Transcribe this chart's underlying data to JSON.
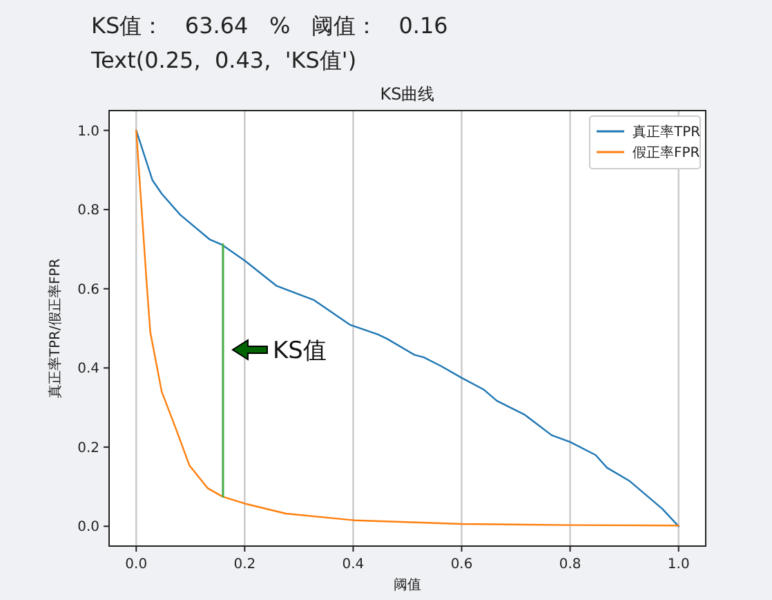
{
  "chart_data": {
    "type": "line",
    "title": "KS曲线",
    "xlabel": "阈值",
    "ylabel": "真正率TPR/假正率FPR",
    "annotations": [
      "KS值：   63.64   %   阈值：   0.16",
      "Text(0.25,  0.43,  'KS值')",
      "KS值"
    ],
    "xlim": [
      -0.05,
      1.05
    ],
    "ylim": [
      -0.05,
      1.05
    ],
    "xticks": [
      {
        "value": 0,
        "label": "0.0"
      },
      {
        "value": 0.2,
        "label": "0.2"
      },
      {
        "value": 0.4,
        "label": "0.4"
      },
      {
        "value": 0.6,
        "label": "0.6"
      },
      {
        "value": 0.8,
        "label": "0.8"
      },
      {
        "value": 1,
        "label": "1.0"
      }
    ],
    "yticks": [
      {
        "value": 0,
        "label": "0.0"
      },
      {
        "value": 0.2,
        "label": "0.2"
      },
      {
        "value": 0.4,
        "label": "0.4"
      },
      {
        "value": 0.6,
        "label": "0.6"
      },
      {
        "value": 0.8,
        "label": "0.8"
      },
      {
        "value": 1,
        "label": "1.0"
      }
    ],
    "grid": "x",
    "legend": "top right",
    "series": [
      {
        "name": "真正率TPR",
        "color": "#1f77b4",
        "x": [
          0,
          0.03,
          0.047,
          0.081,
          0.136,
          0.157,
          0.2,
          0.259,
          0.327,
          0.394,
          0.445,
          0.462,
          0.513,
          0.53,
          0.563,
          0.6,
          0.64,
          0.665,
          0.716,
          0.766,
          0.8,
          0.847,
          0.868,
          0.91,
          0.97,
          1.0
        ],
        "values": [
          1.0,
          0.874,
          0.84,
          0.787,
          0.724,
          0.712,
          0.671,
          0.607,
          0.572,
          0.509,
          0.485,
          0.474,
          0.433,
          0.427,
          0.404,
          0.375,
          0.346,
          0.317,
          0.282,
          0.23,
          0.213,
          0.18,
          0.148,
          0.114,
          0.044,
          0.0
        ]
      },
      {
        "name": "假正率FPR",
        "color": "#ff7f0e",
        "x": [
          0,
          0.01,
          0.02,
          0.026,
          0.047,
          0.073,
          0.098,
          0.132,
          0.159,
          0.204,
          0.276,
          0.403,
          0.6,
          0.8,
          1.0
        ],
        "values": [
          1.0,
          0.8,
          0.6,
          0.49,
          0.34,
          0.247,
          0.154,
          0.096,
          0.075,
          0.056,
          0.032,
          0.015,
          0.006,
          0.003,
          0.002
        ]
      },
      {
        "color": "#4daf4a",
        "x": [
          0.16,
          0.16
        ],
        "values": [
          0.075,
          0.712
        ]
      }
    ]
  }
}
